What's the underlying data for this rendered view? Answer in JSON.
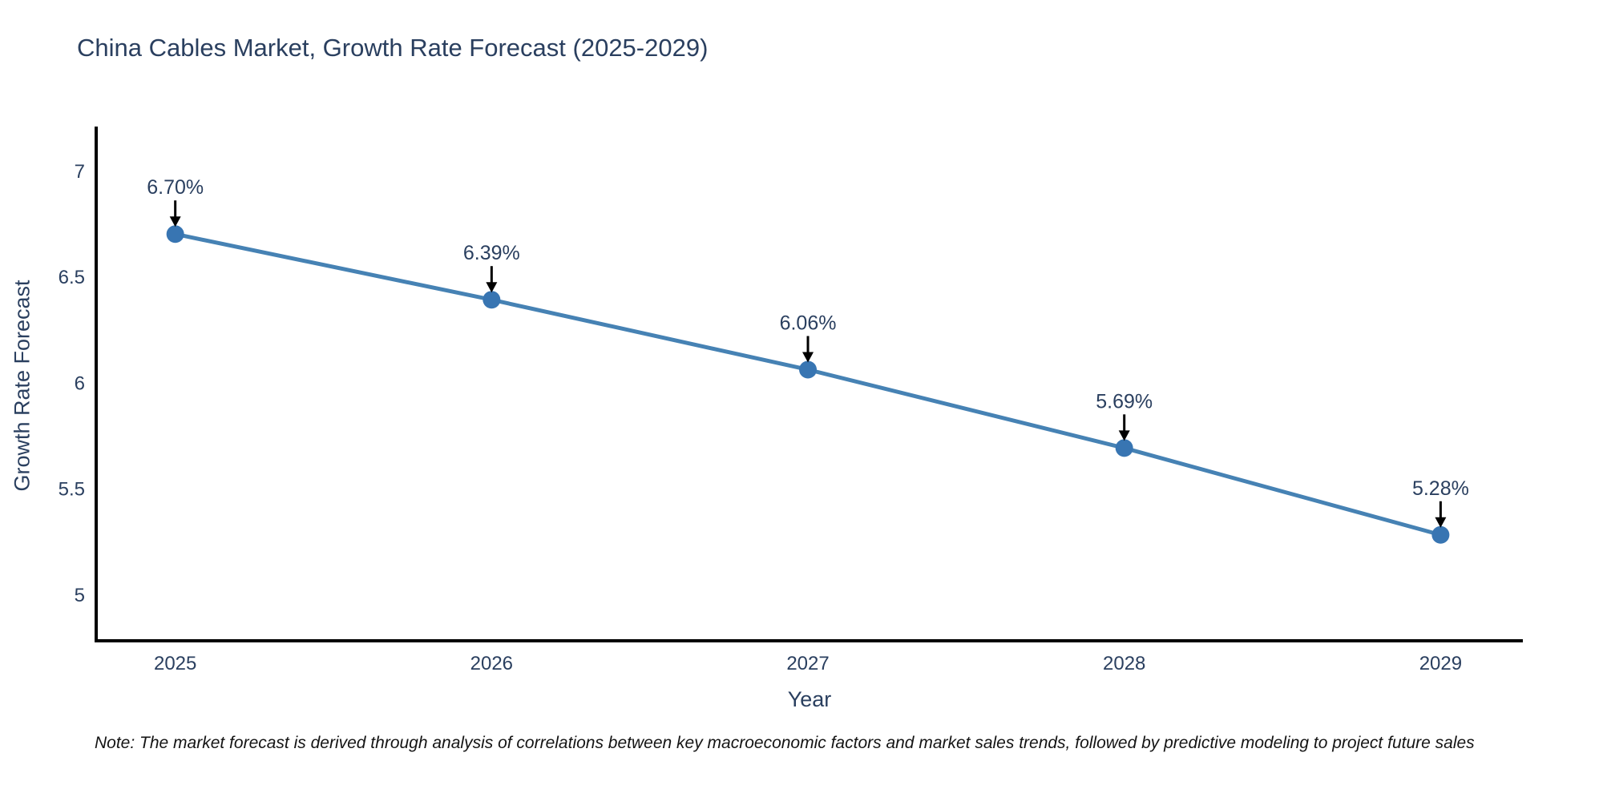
{
  "chart_data": {
    "type": "line",
    "title": "China Cables Market, Growth Rate Forecast (2025-2029)",
    "xlabel": "Year",
    "ylabel": "Growth Rate Forecast",
    "categories": [
      2025,
      2026,
      2027,
      2028,
      2029
    ],
    "series": [
      {
        "name": "Growth Rate Forecast",
        "values": [
          6.7,
          6.39,
          6.06,
          5.69,
          5.28
        ]
      }
    ],
    "point_labels": [
      "6.70%",
      "6.39%",
      "6.06%",
      "5.69%",
      "5.28%"
    ],
    "y_ticks": [
      5,
      5.5,
      6,
      6.5,
      7
    ],
    "y_tick_labels": [
      "5",
      "5.5",
      "6",
      "6.5",
      "7"
    ],
    "xlim": [
      2024.75,
      2029.26
    ],
    "ylim": [
      4.78,
      7.2
    ],
    "grid": false,
    "legend": "none",
    "line_color": "#4682b4",
    "marker_color": "#3875b2",
    "annotation_arrow_color": "#000000"
  },
  "note": "Note: The market forecast is derived through analysis of correlations between key macroeconomic factors and market sales trends, followed by predictive modeling to project future sales",
  "colors": {
    "text": "#2a3f5f",
    "axis_line": "#000000",
    "background": "#ffffff",
    "note_text": "#141414"
  }
}
